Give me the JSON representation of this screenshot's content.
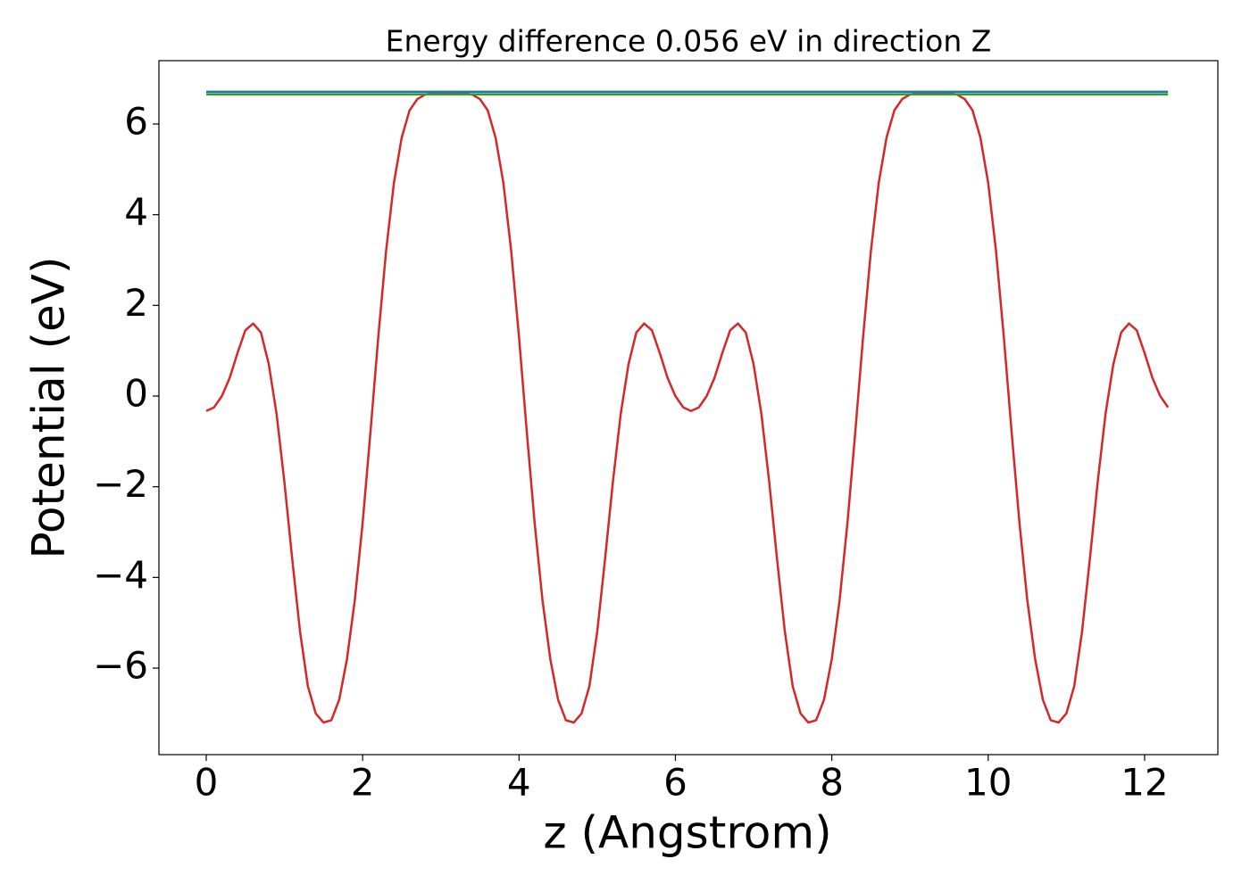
{
  "chart_data": {
    "type": "line",
    "title": "Energy difference 0.056 eV in direction Z",
    "xlabel": "z (Angstrom)",
    "ylabel": "Potential (eV)",
    "xlim": [
      -0.605,
      12.937
    ],
    "ylim": [
      -7.908,
      7.397
    ],
    "xticks": [
      0,
      2,
      4,
      6,
      8,
      10,
      12
    ],
    "yticks": [
      {
        "value": -6,
        "label": "−6"
      },
      {
        "value": -4,
        "label": "−4"
      },
      {
        "value": -2,
        "label": "−2"
      },
      0,
      2,
      4,
      6
    ],
    "grid": false,
    "series": [
      {
        "color": "#d62728",
        "x": [
          0,
          0.1,
          0.2,
          0.3,
          0.4,
          0.5,
          0.6,
          0.7,
          0.8,
          0.9,
          1.0,
          1.1,
          1.2,
          1.3,
          1.4,
          1.5,
          1.6,
          1.7,
          1.8,
          1.9,
          2.0,
          2.1,
          2.2,
          2.3,
          2.4,
          2.5,
          2.6,
          2.7,
          2.8,
          2.9,
          3.0,
          3.1,
          3.2,
          3.3,
          3.4,
          3.5,
          3.6,
          3.7,
          3.8,
          3.9,
          4.0,
          4.1,
          4.2,
          4.3,
          4.4,
          4.5,
          4.6,
          4.7,
          4.8,
          4.9,
          5.0,
          5.1,
          5.2,
          5.3,
          5.4,
          5.5,
          5.6,
          5.7,
          5.8,
          5.9,
          6.0,
          6.1,
          6.2,
          6.3,
          6.4,
          6.5,
          6.6,
          6.7,
          6.8,
          6.9,
          7.0,
          7.1,
          7.2,
          7.3,
          7.4,
          7.5,
          7.6,
          7.7,
          7.8,
          7.9,
          8.0,
          8.1,
          8.2,
          8.3,
          8.4,
          8.5,
          8.6,
          8.7,
          8.8,
          8.9,
          9.0,
          9.1,
          9.2,
          9.3,
          9.4,
          9.5,
          9.6,
          9.7,
          9.8,
          9.9,
          10.0,
          10.1,
          10.2,
          10.3,
          10.4,
          10.5,
          10.6,
          10.7,
          10.8,
          10.9,
          11.0,
          11.1,
          11.2,
          11.3,
          11.4,
          11.5,
          11.6,
          11.7,
          11.8,
          11.9,
          12.0,
          12.1,
          12.2,
          12.3
        ],
        "values": [
          -0.33,
          -0.25,
          0.0,
          0.4,
          0.95,
          1.45,
          1.6,
          1.4,
          0.7,
          -0.4,
          -1.9,
          -3.6,
          -5.2,
          -6.4,
          -7.0,
          -7.2,
          -7.15,
          -6.7,
          -5.8,
          -4.5,
          -2.8,
          -0.8,
          1.3,
          3.2,
          4.7,
          5.7,
          6.3,
          6.55,
          6.65,
          6.68,
          6.7,
          6.7,
          6.7,
          6.68,
          6.65,
          6.55,
          6.3,
          5.7,
          4.7,
          3.2,
          1.3,
          -0.8,
          -2.8,
          -4.5,
          -5.8,
          -6.7,
          -7.15,
          -7.2,
          -7.0,
          -6.4,
          -5.2,
          -3.6,
          -1.9,
          -0.4,
          0.7,
          1.4,
          1.6,
          1.45,
          0.95,
          0.4,
          0.0,
          -0.25,
          -0.33,
          -0.25,
          0.0,
          0.4,
          0.95,
          1.45,
          1.6,
          1.4,
          0.7,
          -0.4,
          -1.9,
          -3.6,
          -5.2,
          -6.4,
          -7.0,
          -7.2,
          -7.15,
          -6.7,
          -5.8,
          -4.5,
          -2.8,
          -0.8,
          1.3,
          3.2,
          4.7,
          5.7,
          6.3,
          6.55,
          6.65,
          6.68,
          6.7,
          6.7,
          6.7,
          6.68,
          6.65,
          6.55,
          6.3,
          5.7,
          4.7,
          3.2,
          1.3,
          -0.8,
          -2.8,
          -4.5,
          -5.8,
          -6.7,
          -7.15,
          -7.2,
          -7.0,
          -6.4,
          -5.2,
          -3.6,
          -1.9,
          -0.4,
          0.7,
          1.4,
          1.6,
          1.45,
          0.95,
          0.4,
          0.0,
          -0.25
        ]
      },
      {
        "color": "#1f77b4",
        "x": [
          0,
          12.3
        ],
        "values": [
          6.71,
          6.71
        ]
      },
      {
        "color": "#2ca02c",
        "x": [
          0,
          12.3
        ],
        "values": [
          6.654,
          6.654
        ]
      }
    ]
  }
}
